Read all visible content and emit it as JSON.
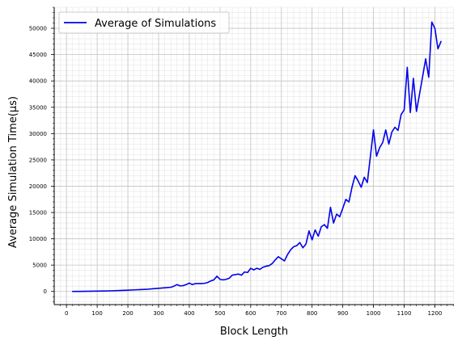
{
  "chart_data": {
    "type": "line",
    "title": "",
    "xlabel": "Block Length",
    "ylabel": "Average Simulation Time(µs)",
    "xlim": [
      -40,
      1262
    ],
    "ylim": [
      -2500,
      54000
    ],
    "xticks": [
      0,
      100,
      200,
      300,
      400,
      500,
      600,
      700,
      800,
      900,
      1000,
      1100,
      1200
    ],
    "yticks": [
      0,
      5000,
      10000,
      15000,
      20000,
      25000,
      30000,
      35000,
      40000,
      45000,
      50000
    ],
    "grid": true,
    "legend_position": "top-left",
    "series": [
      {
        "name": "Average of Simulations",
        "color": "#0000ee",
        "x": [
          20,
          40,
          60,
          80,
          100,
          120,
          140,
          160,
          180,
          200,
          220,
          240,
          260,
          280,
          300,
          320,
          340,
          350,
          360,
          370,
          380,
          390,
          400,
          410,
          420,
          430,
          440,
          450,
          460,
          470,
          480,
          490,
          500,
          510,
          520,
          530,
          540,
          550,
          560,
          570,
          580,
          590,
          600,
          610,
          620,
          630,
          640,
          650,
          660,
          670,
          680,
          690,
          700,
          710,
          720,
          730,
          740,
          750,
          760,
          770,
          780,
          790,
          800,
          810,
          820,
          830,
          840,
          850,
          860,
          870,
          880,
          890,
          900,
          910,
          920,
          930,
          940,
          950,
          960,
          970,
          980,
          990,
          1000,
          1010,
          1020,
          1030,
          1040,
          1050,
          1060,
          1070,
          1080,
          1090,
          1100,
          1110,
          1120,
          1130,
          1140,
          1150,
          1160,
          1170,
          1180,
          1190,
          1200,
          1210,
          1220
        ],
        "values": [
          0,
          10,
          20,
          40,
          60,
          80,
          110,
          150,
          190,
          240,
          300,
          350,
          400,
          500,
          600,
          700,
          800,
          1000,
          1300,
          1050,
          1100,
          1300,
          1600,
          1300,
          1500,
          1500,
          1500,
          1550,
          1700,
          2000,
          2200,
          2900,
          2300,
          2200,
          2300,
          2500,
          3100,
          3200,
          3300,
          3100,
          3700,
          3600,
          4400,
          4100,
          4400,
          4200,
          4600,
          4800,
          4900,
          5300,
          6000,
          6600,
          6200,
          5800,
          7000,
          7900,
          8500,
          8700,
          9300,
          8300,
          9000,
          11500,
          9800,
          11700,
          10500,
          12300,
          12700,
          12000,
          16000,
          13000,
          14700,
          14200,
          15800,
          17500,
          17000,
          19800,
          22000,
          21000,
          19800,
          21700,
          20700,
          25700,
          30700,
          25700,
          27300,
          28300,
          30700,
          28000,
          30300,
          31200,
          30600,
          33600,
          34500,
          42600,
          34000,
          40500,
          34200,
          37500,
          40800,
          44200,
          40700,
          51200,
          50000,
          46100,
          47500
        ]
      }
    ]
  }
}
